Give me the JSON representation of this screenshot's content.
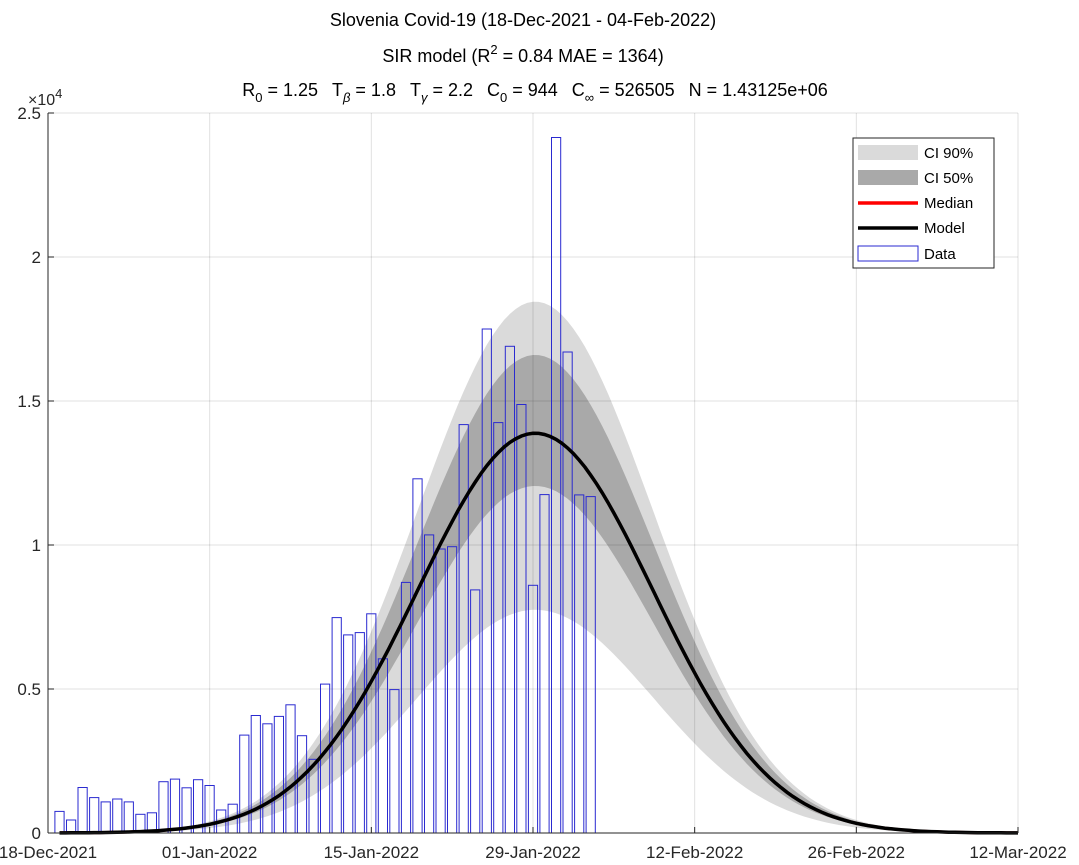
{
  "chart_data": {
    "type": "bar",
    "title": "Slovenia Covid-19 (18-Dec-2021 - 04-Feb-2022)",
    "subtitle": {
      "pre": "SIR model (R",
      "sup": "2",
      "post": " = 0.84   MAE = 1364)"
    },
    "params": {
      "r0": {
        "base": "R",
        "sub": "0",
        "val": " = 1.25"
      },
      "tb": {
        "base": "T",
        "sub": "β",
        "val": " = 1.8"
      },
      "tg": {
        "base": "T",
        "sub": "γ",
        "val": " = 2.2"
      },
      "c0": {
        "base": "C",
        "sub": "0",
        "val": " = 944"
      },
      "ci": {
        "base": "C",
        "sub": "∞",
        "val": " = 526505"
      },
      "n": {
        "base": "",
        "sub": "",
        "val": "N = 1.43125e+06"
      }
    },
    "exponent": {
      "base": "×10",
      "exp": "4"
    },
    "xlabel": "",
    "ylabel": "",
    "ylim": [
      0,
      25000
    ],
    "y_ticks": [
      {
        "v": 0,
        "label": "0"
      },
      {
        "v": 5000,
        "label": "0.5"
      },
      {
        "v": 10000,
        "label": "1"
      },
      {
        "v": 15000,
        "label": "1.5"
      },
      {
        "v": 20000,
        "label": "2"
      },
      {
        "v": 25000,
        "label": "2.5"
      }
    ],
    "x_ticks": [
      {
        "day": 0,
        "label": "18-Dec-2021"
      },
      {
        "day": 14,
        "label": "01-Jan-2022"
      },
      {
        "day": 28,
        "label": "15-Jan-2022"
      },
      {
        "day": 42,
        "label": "29-Jan-2022"
      },
      {
        "day": 56,
        "label": "12-Feb-2022"
      },
      {
        "day": 70,
        "label": "26-Feb-2022"
      },
      {
        "day": 84,
        "label": "12-Mar-2022"
      }
    ],
    "grid": true,
    "legend_position": "top-right",
    "legend": {
      "ci90": "CI 90%",
      "ci50": "CI 50%",
      "median": "Median",
      "model": "Model",
      "data": "Data"
    },
    "colors": {
      "ci90": "#dadada",
      "ci50": "#a9a9a9",
      "median": "#ff0000",
      "model": "#000000",
      "data": "#2a2ad0"
    },
    "data_values": [
      750,
      450,
      1580,
      1230,
      1080,
      1180,
      1080,
      650,
      700,
      1780,
      1870,
      1570,
      1850,
      1650,
      800,
      1000,
      3400,
      4080,
      3790,
      4050,
      4450,
      3380,
      2560,
      5170,
      7480,
      6880,
      6960,
      7610,
      6050,
      4980,
      8700,
      12300,
      10350,
      9860,
      9940,
      14180,
      8440,
      17500,
      14250,
      16900,
      14880,
      8600,
      11750,
      24150,
      16700,
      11740,
      11680
    ]
  }
}
